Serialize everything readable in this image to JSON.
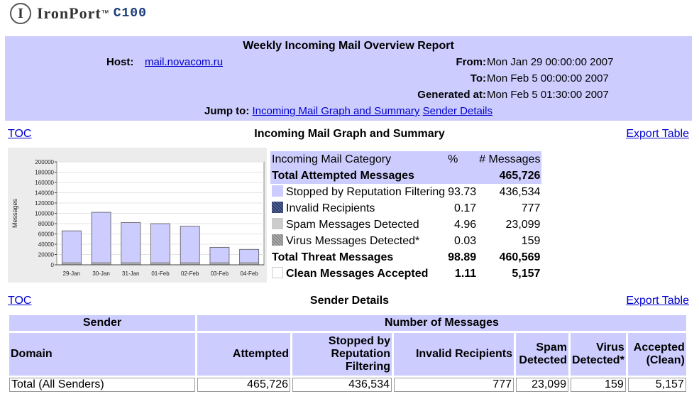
{
  "logo": {
    "mark": "I",
    "brand": "IronPort",
    "tm": "™",
    "model": "C100"
  },
  "report": {
    "title": "Weekly Incoming Mail Overview Report",
    "host_label": "Host:",
    "host": "mail.novacom.ru",
    "from_label": "From:",
    "from": "Mon Jan 29 00:00:00 2007",
    "to_label": "To:",
    "to": "Mon Feb 5 00:00:00 2007",
    "generated_label": "Generated at:",
    "generated": "Mon Feb 5 01:30:00 2007",
    "jump_label": "Jump to:",
    "jump_links": [
      "Incoming Mail Graph and Summary",
      "Sender Details"
    ]
  },
  "section1": {
    "toc": "TOC",
    "title": "Incoming Mail Graph and Summary",
    "export": "Export Table"
  },
  "section2": {
    "toc": "TOC",
    "title": "Sender Details",
    "export": "Export Table"
  },
  "chart_data": {
    "type": "bar",
    "categories": [
      "29-Jan",
      "30-Jan",
      "31-Jan",
      "01-Feb",
      "02-Feb",
      "03-Feb",
      "04-Feb"
    ],
    "values": [
      66000,
      102000,
      82000,
      80000,
      75000,
      34000,
      30000
    ],
    "ylabel": "Messages",
    "ylim": [
      0,
      200000
    ],
    "yticks": [
      "0",
      "20000",
      "40000",
      "60000",
      "80000",
      "100000",
      "120000",
      "140000",
      "160000",
      "180000",
      "200000"
    ],
    "grid": true,
    "bar_color": "#ccccff"
  },
  "summary": {
    "headers": [
      "Incoming Mail Category",
      "%",
      "# Messages"
    ],
    "total_attempted": {
      "label": "Total Attempted Messages",
      "count": "465,726"
    },
    "rows": [
      {
        "label": "Stopped by Reputation Filtering",
        "pct": "93.73",
        "count": "436,534",
        "swatch": "#ccccff"
      },
      {
        "label": "Invalid Recipients",
        "pct": "0.17",
        "count": "777",
        "swatch": "#3d4f7a"
      },
      {
        "label": "Spam Messages Detected",
        "pct": "4.96",
        "count": "23,099",
        "swatch": "#cccccc"
      },
      {
        "label": "Virus Messages Detected*",
        "pct": "0.03",
        "count": "159",
        "swatch": "#999999"
      }
    ],
    "total_threat": {
      "label": "Total Threat Messages",
      "pct": "98.89",
      "count": "460,569"
    },
    "clean": {
      "label": "Clean Messages Accepted",
      "pct": "1.11",
      "count": "5,157",
      "swatch": "#ffffff"
    }
  },
  "sender_table": {
    "group_headers": [
      "Sender",
      "Number of Messages"
    ],
    "columns": [
      "Domain",
      "Attempted",
      "Stopped by\nReputation\nFiltering",
      "Invalid Recipients",
      "Spam\nDetected",
      "Virus\nDetected*",
      "Accepted\n(Clean)"
    ],
    "rows": [
      [
        "Total (All Senders)",
        "465,726",
        "436,534",
        "777",
        "23,099",
        "159",
        "5,157"
      ]
    ]
  }
}
